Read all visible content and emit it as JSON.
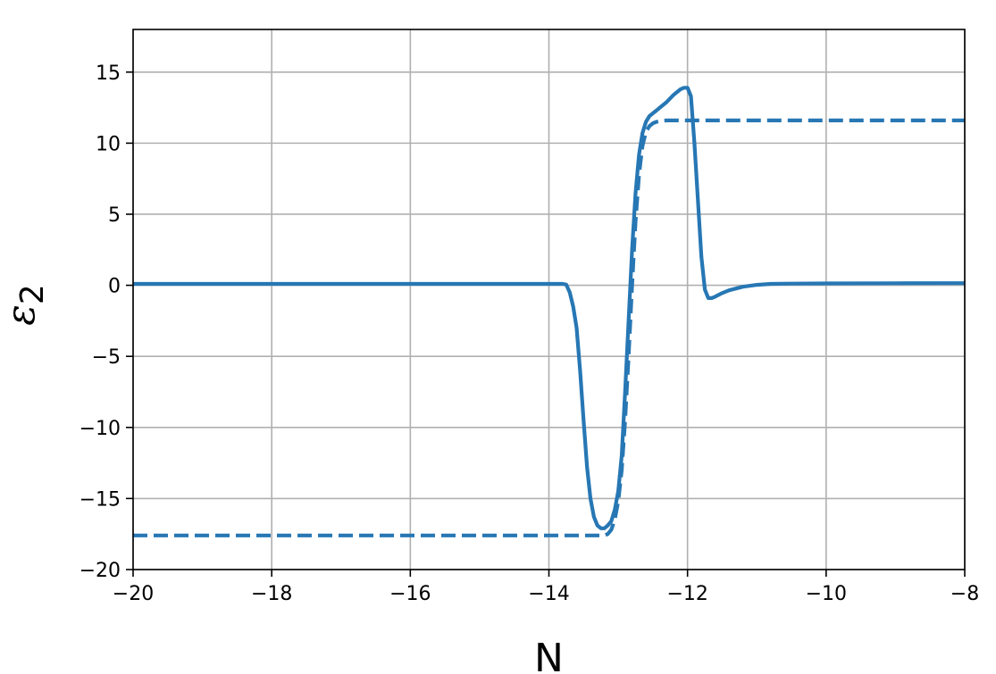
{
  "chart_data": {
    "type": "line",
    "xlabel": "N",
    "ylabel_main": "ε",
    "ylabel_sub": "2",
    "xlim": [
      -20,
      -8
    ],
    "ylim": [
      -20,
      18
    ],
    "grid": true,
    "xticks": [
      -20,
      -18,
      -16,
      -14,
      -12,
      -10,
      -8
    ],
    "yticks": [
      -20,
      -15,
      -10,
      -5,
      0,
      5,
      10,
      15
    ],
    "xtick_labels": [
      "−20",
      "−18",
      "−16",
      "−14",
      "−12",
      "−10",
      "−8"
    ],
    "ytick_labels": [
      "−20",
      "−15",
      "−10",
      "−5",
      "0",
      "5",
      "10",
      "15"
    ],
    "color": "#2777b4",
    "series": [
      {
        "style": "solid",
        "x": [
          -20,
          -14.0,
          -13.8,
          -13.75,
          -13.7,
          -13.65,
          -13.6,
          -13.55,
          -13.5,
          -13.45,
          -13.4,
          -13.35,
          -13.3,
          -13.25,
          -13.2,
          -13.15,
          -13.1,
          -13.05,
          -13.0,
          -12.95,
          -12.9,
          -12.85,
          -12.8,
          -12.75,
          -12.7,
          -12.65,
          -12.6,
          -12.55,
          -12.5,
          -12.45,
          -12.4,
          -12.3,
          -12.2,
          -12.1,
          -12.05,
          -12.0,
          -11.95,
          -11.9,
          -11.85,
          -11.8,
          -11.75,
          -11.7,
          -11.65,
          -11.6,
          -11.5,
          -11.4,
          -11.2,
          -11.0,
          -10.8,
          -10.5,
          -10,
          -9,
          -8
        ],
        "y": [
          0.1,
          0.1,
          0.1,
          0.05,
          -0.5,
          -1.5,
          -3,
          -6,
          -9.5,
          -12.8,
          -15.0,
          -16.3,
          -16.9,
          -17.1,
          -17.1,
          -16.9,
          -16.6,
          -15.8,
          -14.5,
          -12.0,
          -7.5,
          -2.5,
          2.5,
          6.5,
          9.2,
          10.7,
          11.5,
          11.9,
          12.1,
          12.3,
          12.5,
          12.9,
          13.4,
          13.8,
          13.9,
          13.9,
          13.3,
          10.0,
          6.0,
          2.0,
          -0.3,
          -0.9,
          -0.9,
          -0.8,
          -0.55,
          -0.35,
          -0.1,
          0.03,
          0.1,
          0.12,
          0.13,
          0.14,
          0.15
        ]
      },
      {
        "style": "dashed",
        "x": [
          -20,
          -13.2,
          -13.15,
          -13.1,
          -13.05,
          -13.0,
          -12.95,
          -12.9,
          -12.85,
          -12.8,
          -12.75,
          -12.7,
          -12.65,
          -12.6,
          -12.55,
          -12.5,
          -12.45,
          -12.4,
          -12.35,
          -12.3,
          -12.2,
          -8
        ],
        "y": [
          -17.6,
          -17.6,
          -17.5,
          -17.2,
          -16.5,
          -15.2,
          -13.0,
          -9.5,
          -5.0,
          0.0,
          4.5,
          7.8,
          9.8,
          10.8,
          11.2,
          11.4,
          11.5,
          11.55,
          11.58,
          11.6,
          11.6,
          11.6
        ]
      }
    ]
  }
}
